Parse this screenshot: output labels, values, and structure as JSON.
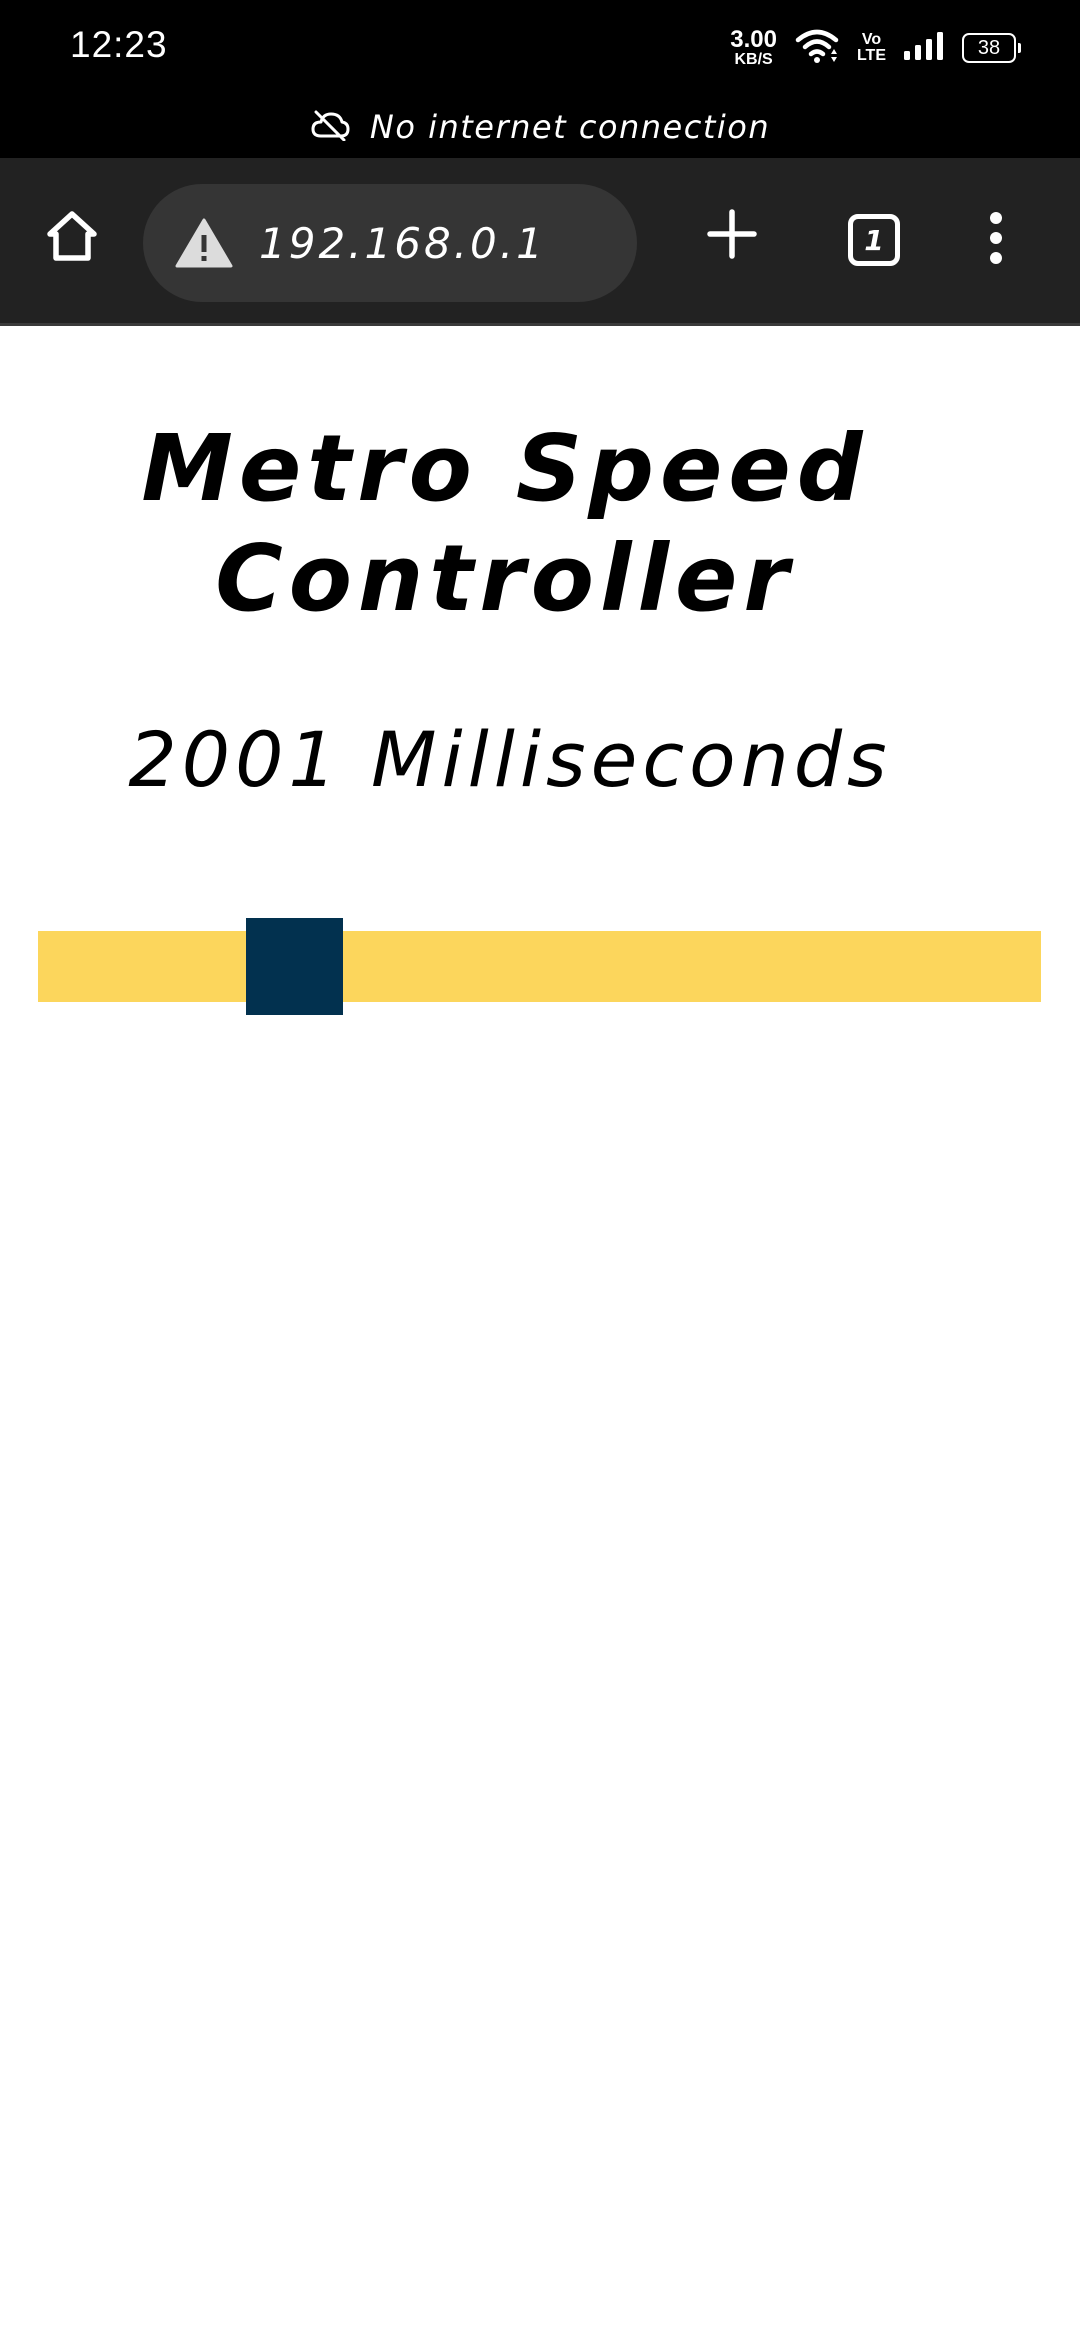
{
  "status_bar": {
    "time": "12:23",
    "net_speed_value": "3.00",
    "net_speed_unit": "KB/S",
    "volte_top": "Vo",
    "volte_bottom": "LTE",
    "battery": "38"
  },
  "offline_banner": {
    "icon": "cloud-off-icon",
    "text": "No internet connection"
  },
  "browser_toolbar": {
    "home_icon": "home-icon",
    "security_icon": "warning-icon",
    "url": "192.168.0.1",
    "new_tab_icon": "plus-icon",
    "tab_count": "1",
    "menu_icon": "more-vert-icon"
  },
  "page": {
    "title": "Metro Speed Controller",
    "speed_readout": "2001 Milliseconds",
    "slider": {
      "position_fraction": 0.23,
      "track_color": "#fcd65c",
      "thumb_color": "#02314f"
    }
  }
}
